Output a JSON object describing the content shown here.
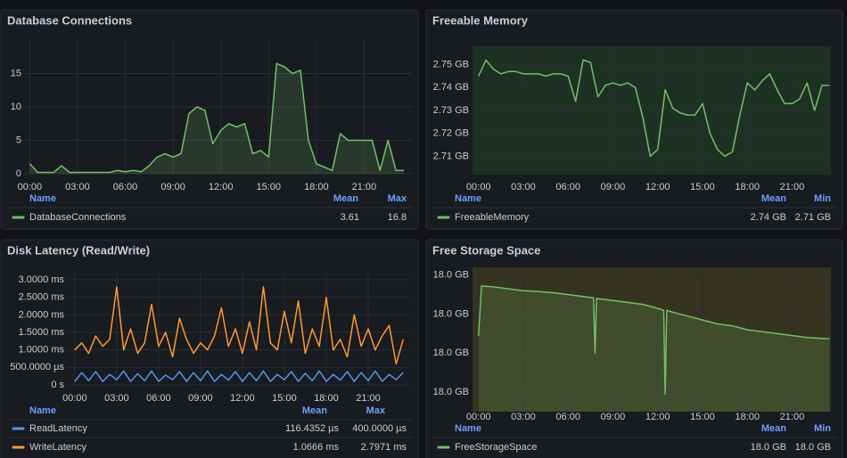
{
  "chart_data": [
    {
      "type": "line",
      "title": "Database Connections",
      "grid": true,
      "fill": true,
      "x": [
        0,
        0.5,
        1,
        1.5,
        2,
        2.5,
        3,
        3.5,
        4,
        4.5,
        5,
        5.5,
        6,
        6.5,
        7,
        7.5,
        8,
        8.5,
        9,
        9.5,
        10,
        10.5,
        11,
        11.5,
        12,
        12.5,
        13,
        13.5,
        14,
        14.5,
        15,
        15.5,
        16,
        16.5,
        17,
        17.5,
        18,
        18.5,
        19,
        19.5,
        20,
        20.5,
        21,
        21.5,
        22,
        22.5,
        23,
        23.5
      ],
      "xlim": [
        -0.3,
        24
      ],
      "xticks": [
        {
          "value": 0,
          "label": "00:00"
        },
        {
          "value": 3,
          "label": "03:00"
        },
        {
          "value": 6,
          "label": "06:00"
        },
        {
          "value": 9,
          "label": "09:00"
        },
        {
          "value": 12,
          "label": "12:00"
        },
        {
          "value": 15,
          "label": "15:00"
        },
        {
          "value": 18,
          "label": "18:00"
        },
        {
          "value": 21,
          "label": "21:00"
        }
      ],
      "ylim": [
        0,
        20
      ],
      "yticks": [
        0,
        5,
        10,
        15
      ],
      "legend_columns": [
        "Name",
        "Mean",
        "Max"
      ],
      "series": [
        {
          "name": "DatabaseConnections",
          "color": "#73bf69",
          "legend_values": [
            "3.61",
            "16.8"
          ],
          "values": [
            1.5,
            0.2,
            0.2,
            0.2,
            1.2,
            0.2,
            0.2,
            0.2,
            0.2,
            0.2,
            0.2,
            0.5,
            0.3,
            0.5,
            0.3,
            1.2,
            2.5,
            3,
            2.5,
            3,
            9,
            10,
            9.5,
            4.5,
            6.5,
            7.5,
            7,
            7.5,
            3,
            3.5,
            2.5,
            16.5,
            16,
            15,
            15.5,
            5,
            1.5,
            1,
            0.5,
            6,
            5,
            5,
            5,
            5,
            0.5,
            5,
            0.5,
            0.5
          ]
        }
      ]
    },
    {
      "type": "line",
      "title": "Freeable Memory",
      "grid": true,
      "fill": false,
      "plot_background": "#1d3123",
      "x": [
        0,
        0.5,
        1,
        1.5,
        2,
        2.5,
        3,
        3.5,
        4,
        4.5,
        5,
        5.5,
        6,
        6.5,
        7,
        7.5,
        8,
        8.5,
        9,
        9.5,
        10,
        10.5,
        11,
        11.5,
        12,
        12.5,
        13,
        13.5,
        14,
        14.5,
        15,
        15.5,
        16,
        16.5,
        17,
        17.5,
        18,
        18.5,
        19,
        19.5,
        20,
        20.5,
        21,
        21.5,
        22,
        22.5,
        23,
        23.5
      ],
      "xlim": [
        -0.4,
        23.6
      ],
      "xticks": [
        {
          "value": 0,
          "label": "00:00"
        },
        {
          "value": 3,
          "label": "03:00"
        },
        {
          "value": 6,
          "label": "06:00"
        },
        {
          "value": 9,
          "label": "09:00"
        },
        {
          "value": 12,
          "label": "12:00"
        },
        {
          "value": 15,
          "label": "15:00"
        },
        {
          "value": 18,
          "label": "18:00"
        },
        {
          "value": 21,
          "label": "21:00"
        }
      ],
      "ylim": [
        2.702,
        2.758
      ],
      "yticks": [
        {
          "value": 2.71,
          "label": "2.71 GB"
        },
        {
          "value": 2.72,
          "label": "2.72 GB"
        },
        {
          "value": 2.73,
          "label": "2.73 GB"
        },
        {
          "value": 2.74,
          "label": "2.74 GB"
        },
        {
          "value": 2.75,
          "label": "2.75 GB"
        }
      ],
      "legend_columns": [
        "Name",
        "Mean",
        "Min"
      ],
      "series": [
        {
          "name": "FreeableMemory",
          "color": "#73bf69",
          "legend_values": [
            "2.74 GB",
            "2.71 GB"
          ],
          "values": [
            2.745,
            2.752,
            2.748,
            2.746,
            2.747,
            2.747,
            2.746,
            2.746,
            2.746,
            2.745,
            2.746,
            2.746,
            2.745,
            2.734,
            2.752,
            2.751,
            2.736,
            2.741,
            2.742,
            2.741,
            2.742,
            2.74,
            2.727,
            2.71,
            2.713,
            2.739,
            2.731,
            2.729,
            2.728,
            2.728,
            2.733,
            2.72,
            2.713,
            2.71,
            2.712,
            2.728,
            2.742,
            2.739,
            2.743,
            2.746,
            2.739,
            2.733,
            2.733,
            2.735,
            2.742,
            2.73,
            2.741,
            2.741
          ]
        }
      ]
    },
    {
      "type": "line",
      "title": "Disk Latency (Read/Write)",
      "grid": true,
      "fill": false,
      "x": [
        0,
        0.5,
        1,
        1.5,
        2,
        2.5,
        3,
        3.5,
        4,
        4.5,
        5,
        5.5,
        6,
        6.5,
        7,
        7.5,
        8,
        8.5,
        9,
        9.5,
        10,
        10.5,
        11,
        11.5,
        12,
        12.5,
        13,
        13.5,
        14,
        14.5,
        15,
        15.5,
        16,
        16.5,
        17,
        17.5,
        18,
        18.5,
        19,
        19.5,
        20,
        20.5,
        21,
        21.5,
        22,
        22.5,
        23,
        23.5
      ],
      "xlim": [
        -0.5,
        24
      ],
      "xticks": [
        {
          "value": 0,
          "label": "00:00"
        },
        {
          "value": 3,
          "label": "03:00"
        },
        {
          "value": 6,
          "label": "06:00"
        },
        {
          "value": 9,
          "label": "09:00"
        },
        {
          "value": 12,
          "label": "12:00"
        },
        {
          "value": 15,
          "label": "15:00"
        },
        {
          "value": 18,
          "label": "18:00"
        },
        {
          "value": 21,
          "label": "21:00"
        }
      ],
      "ylim": [
        0,
        3.23
      ],
      "yticks": [
        {
          "value": 0,
          "label": "0 s"
        },
        {
          "value": 0.5,
          "label": "500.0000 µs"
        },
        {
          "value": 1,
          "label": "1.0000 ms"
        },
        {
          "value": 1.5,
          "label": "1.5000 ms"
        },
        {
          "value": 2,
          "label": "2.0000 ms"
        },
        {
          "value": 2.5,
          "label": "2.5000 ms"
        },
        {
          "value": 3,
          "label": "3.0000 ms"
        }
      ],
      "legend_columns": [
        "Name",
        "Mean",
        "Max"
      ],
      "series": [
        {
          "name": "ReadLatency",
          "color": "#5794f2",
          "legend_values": [
            "116.4352 µs",
            "400.0000 µs"
          ],
          "values": [
            0.1,
            0.35,
            0.12,
            0.38,
            0.1,
            0.3,
            0.15,
            0.4,
            0.1,
            0.32,
            0.12,
            0.4,
            0.1,
            0.28,
            0.15,
            0.38,
            0.1,
            0.35,
            0.12,
            0.4,
            0.1,
            0.3,
            0.14,
            0.38,
            0.1,
            0.35,
            0.12,
            0.4,
            0.1,
            0.3,
            0.15,
            0.38,
            0.1,
            0.33,
            0.12,
            0.4,
            0.1,
            0.3,
            0.14,
            0.38,
            0.1,
            0.35,
            0.12,
            0.4,
            0.1,
            0.3,
            0.15,
            0.35
          ]
        },
        {
          "name": "WriteLatency",
          "color": "#ff9830",
          "legend_values": [
            "1.0666 ms",
            "2.7971 ms"
          ],
          "values": [
            1.0,
            1.2,
            0.9,
            1.4,
            1.1,
            1.3,
            2.8,
            1.0,
            1.6,
            0.9,
            1.2,
            2.3,
            1.1,
            1.5,
            0.8,
            1.9,
            1.3,
            0.9,
            1.2,
            1.0,
            1.4,
            2.2,
            1.1,
            1.6,
            0.9,
            1.8,
            1.0,
            2.8,
            1.2,
            1.0,
            2.1,
            1.2,
            2.4,
            0.9,
            1.6,
            1.1,
            2.5,
            1.0,
            1.3,
            0.8,
            2.0,
            1.1,
            1.6,
            1.0,
            1.4,
            1.7,
            0.6,
            1.3
          ]
        }
      ]
    },
    {
      "type": "line",
      "title": "Free Storage Space",
      "grid": true,
      "fill": true,
      "plot_background": "#35341f",
      "x": [
        0,
        0.2,
        1,
        2,
        3,
        4,
        5,
        6,
        7,
        7.7,
        7.8,
        7.9,
        9,
        10,
        11,
        12,
        12.4,
        12.5,
        12.6,
        13,
        14,
        15,
        16,
        17,
        18,
        19,
        20,
        21,
        22,
        23,
        23.5
      ],
      "xlim": [
        -0.4,
        23.6
      ],
      "xticks": [
        {
          "value": 0,
          "label": "00:00"
        },
        {
          "value": 3,
          "label": "03:00"
        },
        {
          "value": 6,
          "label": "06:00"
        },
        {
          "value": 9,
          "label": "09:00"
        },
        {
          "value": 12,
          "label": "12:00"
        },
        {
          "value": 15,
          "label": "15:00"
        },
        {
          "value": 18,
          "label": "18:00"
        },
        {
          "value": 21,
          "label": "21:00"
        }
      ],
      "ylim": [
        17.995,
        18.032
      ],
      "yticks": [
        {
          "value": 18.0,
          "label": "18.0 GB"
        },
        {
          "value": 18.01,
          "label": "18.0 GB"
        },
        {
          "value": 18.02,
          "label": "18.0 GB"
        },
        {
          "value": 18.03,
          "label": "18.0 GB"
        }
      ],
      "legend_columns": [
        "Name",
        "Mean",
        "Min"
      ],
      "series": [
        {
          "name": "FreeStorageSpace",
          "color": "#73bf69",
          "legend_values": [
            "18.0 GB",
            "18.0 GB"
          ],
          "values": [
            18.0144,
            18.0272,
            18.027,
            18.0265,
            18.026,
            18.0258,
            18.0255,
            18.025,
            18.0245,
            18.0242,
            18.01,
            18.024,
            18.0235,
            18.023,
            18.0225,
            18.0215,
            18.021,
            17.9995,
            18.021,
            18.0205,
            18.0195,
            18.0185,
            18.0175,
            18.017,
            18.016,
            18.0155,
            18.015,
            18.0145,
            18.014,
            18.0138,
            18.0137
          ]
        }
      ]
    }
  ]
}
